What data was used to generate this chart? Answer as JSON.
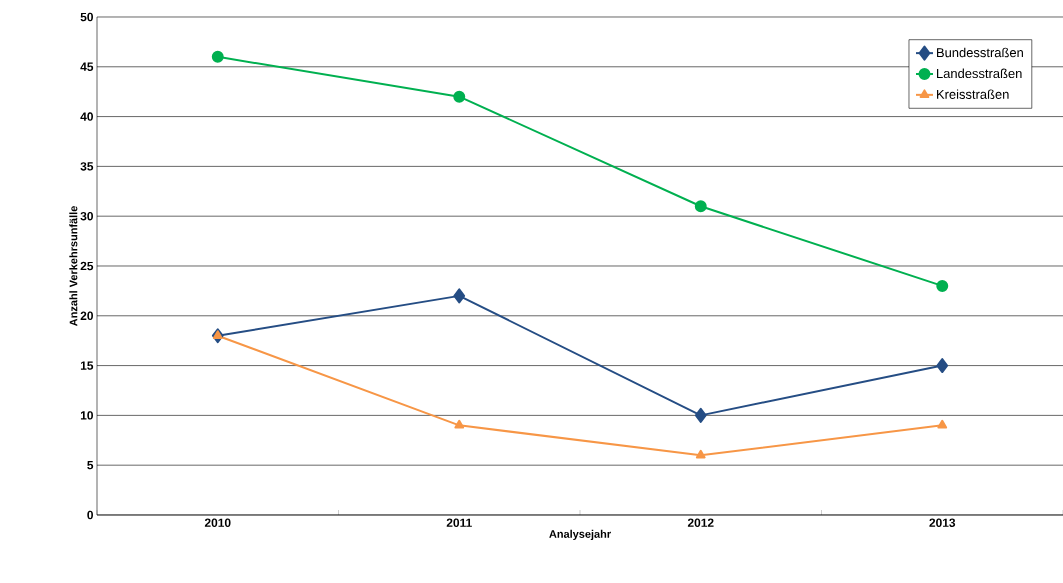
{
  "chart_data": {
    "type": "line",
    "xlabel": "Analysejahr",
    "ylabel": "Anzahl Verkehrsunfälle",
    "categories": [
      "2010",
      "2011",
      "2012",
      "2013"
    ],
    "series": [
      {
        "name": "Bundesstraßen",
        "color": "#254d84",
        "marker": "diamond",
        "values": [
          18,
          22,
          10,
          15
        ]
      },
      {
        "name": "Landesstraßen",
        "color": "#00b050",
        "marker": "circle",
        "values": [
          46,
          42,
          31,
          23
        ]
      },
      {
        "name": "Kreisstraßen",
        "color": "#f79646",
        "marker": "triangle",
        "values": [
          18,
          9,
          6,
          9
        ]
      }
    ],
    "ylim": [
      0,
      50
    ],
    "yticks": [
      0,
      5,
      10,
      15,
      20,
      25,
      30,
      35,
      40,
      45,
      50
    ],
    "grid": "y",
    "legend": "top right",
    "line_style": "solid"
  }
}
